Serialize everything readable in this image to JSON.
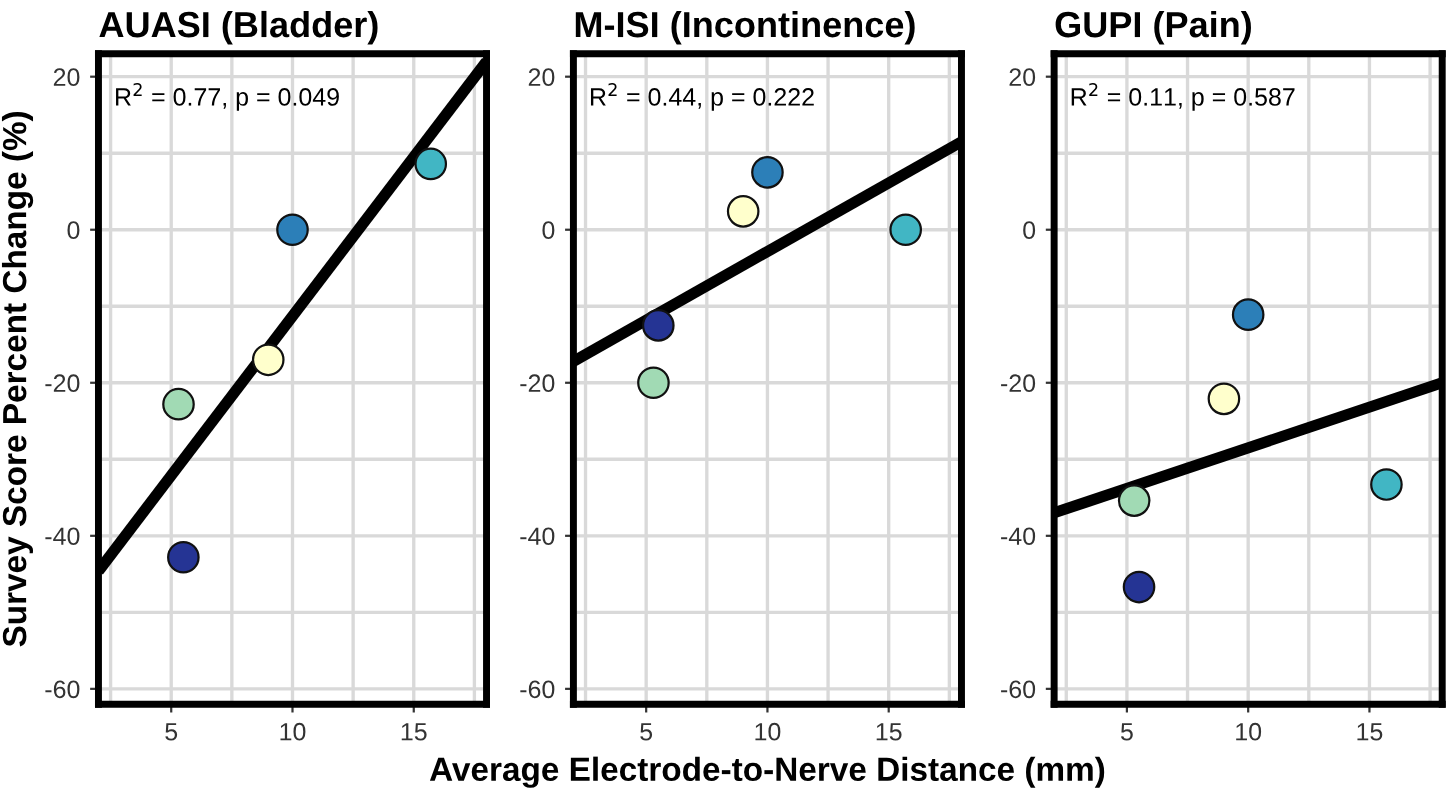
{
  "chart_data": [
    {
      "type": "scatter",
      "title": "AUASI (Bladder)",
      "ylabel": "Survey Score Percent Change (%)",
      "xlim": [
        2,
        18
      ],
      "ylim": [
        -62,
        23
      ],
      "xticks": [
        5,
        10,
        15
      ],
      "yticks": [
        -60,
        -40,
        -20,
        0,
        20
      ],
      "grid": true,
      "annotations": [
        "R$^{2}$ = 0.77, p = 0.049"
      ],
      "series": [
        {
          "marker": "circle",
          "x": [
            5.5,
            5.3,
            9.0,
            10.0,
            15.7
          ],
          "values": [
            -42.8,
            -22.8,
            -17,
            0,
            8.6
          ],
          "colors": [
            "#253494",
            "#a1dab4",
            "#ffffcc",
            "#2c7fb8",
            "#41b6c4"
          ]
        },
        {
          "type": "line",
          "x": [
            2,
            18
          ],
          "values": [
            -44.6,
            22
          ],
          "color": "#000000"
        }
      ]
    },
    {
      "type": "scatter",
      "title": "M-ISI (Incontinence)",
      "xlabel": "Average Electrode-to-Nerve Distance (mm)",
      "xlim": [
        2,
        18
      ],
      "ylim": [
        -62,
        23
      ],
      "xticks": [
        5,
        10,
        15
      ],
      "yticks": [
        -60,
        -40,
        -20,
        0,
        20
      ],
      "grid": true,
      "annotations": [
        "R$^{2}$ = 0.44, p = 0.222"
      ],
      "series": [
        {
          "marker": "circle",
          "x": [
            5.5,
            5.3,
            9.0,
            10.0,
            15.7
          ],
          "values": [
            -12.5,
            -20,
            2.4,
            7.5,
            0
          ],
          "colors": [
            "#253494",
            "#a1dab4",
            "#ffffcc",
            "#2c7fb8",
            "#41b6c4"
          ]
        },
        {
          "type": "line",
          "x": [
            2,
            18
          ],
          "values": [
            -17.2,
            11.5
          ],
          "color": "#000000"
        }
      ]
    },
    {
      "type": "scatter",
      "title": "GUPI (Pain)",
      "xlim": [
        2,
        18
      ],
      "ylim": [
        -62,
        23
      ],
      "xticks": [
        5,
        10,
        15
      ],
      "yticks": [
        -60,
        -40,
        -20,
        0,
        20
      ],
      "grid": true,
      "annotations": [
        "R$^{2}$ = 0.11, p = 0.587"
      ],
      "series": [
        {
          "marker": "circle",
          "x": [
            5.5,
            5.3,
            9.0,
            10.0,
            15.7
          ],
          "values": [
            -46.7,
            -35.4,
            -22.1,
            -11.1,
            -33.3
          ],
          "colors": [
            "#253494",
            "#a1dab4",
            "#ffffcc",
            "#2c7fb8",
            "#41b6c4"
          ]
        },
        {
          "type": "line",
          "x": [
            2,
            18
          ],
          "values": [
            -37,
            -20
          ],
          "color": "#000000"
        }
      ]
    }
  ]
}
